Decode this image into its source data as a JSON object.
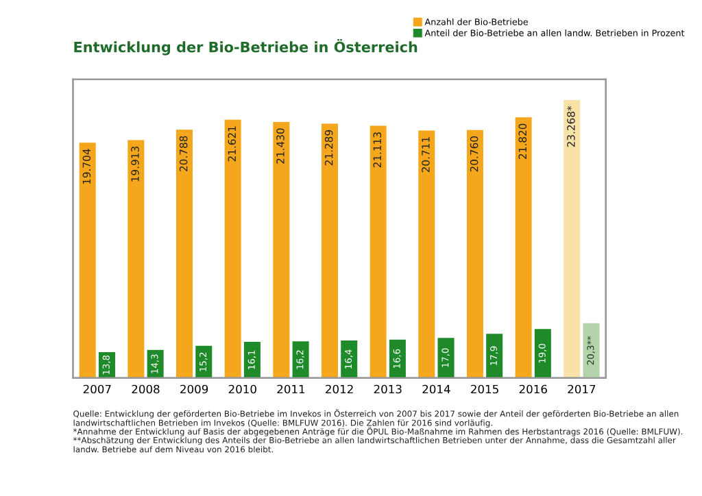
{
  "chart_data": {
    "type": "bar",
    "title": "Entwicklung der Bio-Betriebe in Österreich",
    "categories": [
      "2007",
      "2008",
      "2009",
      "2010",
      "2011",
      "2012",
      "2013",
      "2014",
      "2015",
      "2016",
      "2017"
    ],
    "series": [
      {
        "name": "Anzahl der Bio-Betriebe",
        "color": "#f4a71c",
        "colors": [
          "#f4a71c",
          "#f4a71c",
          "#f4a71c",
          "#f4a71c",
          "#f4a71c",
          "#f4a71c",
          "#f4a71c",
          "#f4a71c",
          "#f4a71c",
          "#f4a71c",
          "#f8e2a8"
        ],
        "values": [
          19704,
          19913,
          20788,
          21621,
          21430,
          21289,
          21113,
          20711,
          20760,
          21820,
          23268
        ],
        "value_labels": [
          "19.704",
          "19.913",
          "20.788",
          "21.621",
          "21.430",
          "21.289",
          "21.113",
          "20.711",
          "20.760",
          "21.820",
          "23.268*"
        ]
      },
      {
        "name": "Anteil der Bio-Betriebe an allen landw. Betrieben in Prozent",
        "color": "#1e8a2a",
        "axis": "y2",
        "colors": [
          "#1e8a2a",
          "#1e8a2a",
          "#1e8a2a",
          "#1e8a2a",
          "#1e8a2a",
          "#1e8a2a",
          "#1e8a2a",
          "#1e8a2a",
          "#1e8a2a",
          "#1e8a2a",
          "#b3d3a8"
        ],
        "values": [
          13.8,
          14.3,
          15.2,
          16.1,
          16.2,
          16.4,
          16.6,
          17.0,
          17.9,
          19.0,
          20.3
        ],
        "value_labels": [
          "13,8",
          "14,3",
          "15,2",
          "16,1",
          "16,2",
          "16,4",
          "16,6",
          "17,0",
          "17,9",
          "19,0",
          "20,3**"
        ]
      }
    ],
    "ylim": [
      0,
      25000
    ],
    "y2lim": [
      8,
      75
    ],
    "tick_labels": "x",
    "grid": false,
    "legend": "top right",
    "annotations": [
      "Quelle: Entwicklung der geförderten Bio-Betriebe im Invekos in Österreich von 2007 bis 2017 sowie der Anteil der geförderten Bio-Betriebe an allen landwirtschaftlichen Betrieben im Invekos (Quelle: BMLFUW 2016). Die Zahlen für 2016 sind vorläufig.",
      "*Annahme der Entwicklung auf Basis der abgegebenen Anträge für die ÖPUL Bio-Maßnahme im Rahmen des Herbstantrags 2016 (Quelle: BMLFUW).",
      "**Abschätzung der Entwicklung des Anteils der Bio-Betriebe an allen landwirtschaftlichen Betrieben unter der Annahme, dass die Gesamtzahl aller landw. Betriebe auf dem Niveau von 2016 bleibt."
    ]
  }
}
